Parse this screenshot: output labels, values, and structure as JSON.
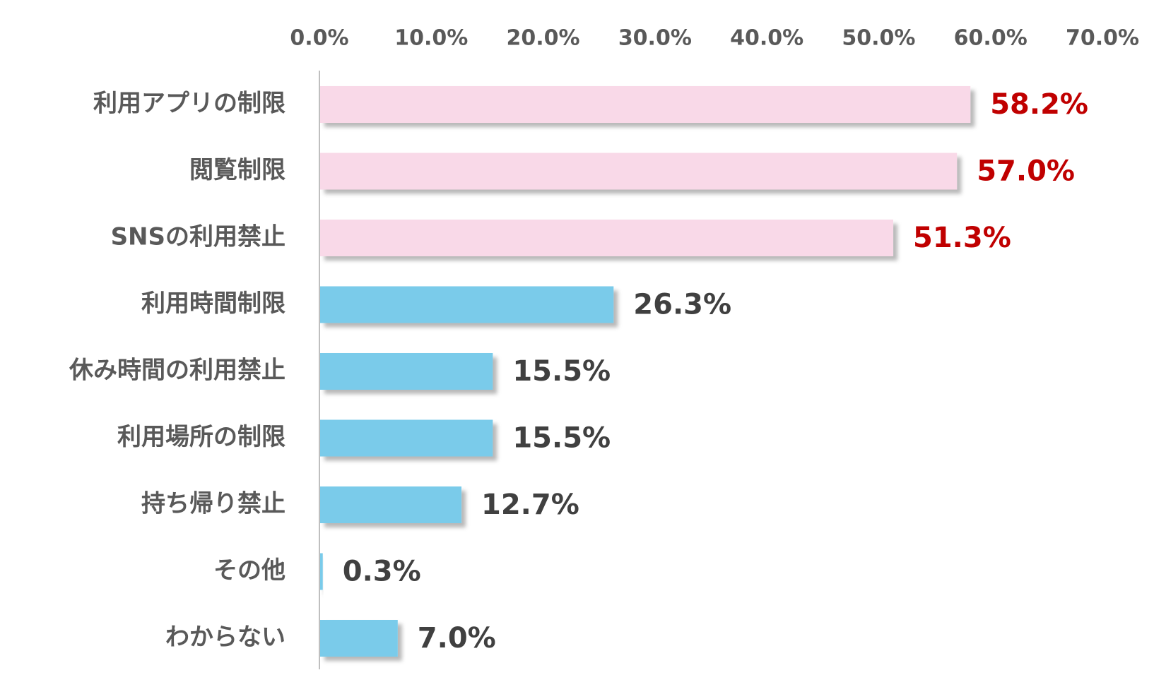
{
  "chart_data": {
    "type": "bar",
    "orientation": "horizontal",
    "title": "",
    "xlabel": "",
    "ylabel": "",
    "xlim": [
      0,
      70
    ],
    "x_ticks": [
      "0.0%",
      "10.0%",
      "20.0%",
      "30.0%",
      "40.0%",
      "50.0%",
      "60.0%",
      "70.0%"
    ],
    "x_axis_position": "top",
    "grid": false,
    "legend": "none",
    "categories": [
      "利用アプリの制限",
      "閲覧制限",
      "SNSの利用禁止",
      "利用時間制限",
      "休み時間の利用禁止",
      "利用場所の制限",
      "持ち帰り禁止",
      "その他",
      "わからない"
    ],
    "values": [
      58.2,
      57.0,
      51.3,
      26.3,
      15.5,
      15.5,
      12.7,
      0.3,
      7.0
    ],
    "value_labels": [
      "58.2%",
      "57.0%",
      "51.3%",
      "26.3%",
      "15.5%",
      "15.5%",
      "12.7%",
      "0.3%",
      "7.0%"
    ],
    "highlighted": [
      true,
      true,
      true,
      false,
      false,
      false,
      false,
      false,
      false
    ],
    "colors": {
      "highlight_bar": "#F9D9E8",
      "normal_bar": "#7ACBEA",
      "highlight_label": "#C00000",
      "normal_label": "#404040",
      "axis": "#BFBFBF",
      "tick_text": "#595959",
      "category_text": "#595959"
    }
  }
}
